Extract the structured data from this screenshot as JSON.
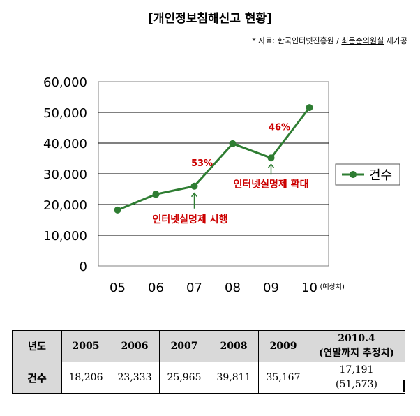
{
  "header": {
    "title": "[개인정보침해신고 현황]",
    "source_prefix": "* 자료: 한국인터넷진흥원 / ",
    "source_underlined": "최문순의원실",
    "source_suffix": " 재가공"
  },
  "chart_data": {
    "type": "line",
    "categories": [
      "05",
      "06",
      "07",
      "08",
      "09",
      "10"
    ],
    "x_suffix_last": "(예상치)",
    "series": [
      {
        "name": "건수",
        "values": [
          18206,
          23333,
          25965,
          39811,
          35167,
          51573
        ],
        "color": "#2e7d32"
      }
    ],
    "ylim": [
      0,
      60000
    ],
    "yticks": [
      "0",
      "10,000",
      "20,000",
      "30,000",
      "40,000",
      "50,000",
      "60,000"
    ],
    "grid": true,
    "legend": "right",
    "annotations": [
      {
        "text": "53%",
        "category_index": 2,
        "color": "#cc0000"
      },
      {
        "text": "46%",
        "category_index": 4,
        "color": "#cc0000"
      },
      {
        "text": "인터넷실명제 시행",
        "category_index": 2,
        "color": "#cc0000"
      },
      {
        "text": "인터넷실명제 확대",
        "category_index": 4,
        "color": "#cc0000"
      }
    ]
  },
  "table": {
    "headers": [
      "년도",
      "2005",
      "2006",
      "2007",
      "2008",
      "2009",
      "2010.4",
      "(연말까지 추정치)"
    ],
    "row_label": "건수",
    "values": [
      "18,206",
      "23,333",
      "25,965",
      "39,811",
      "35,167"
    ],
    "last_value": "17,191",
    "last_estimate": "(51,573)"
  }
}
